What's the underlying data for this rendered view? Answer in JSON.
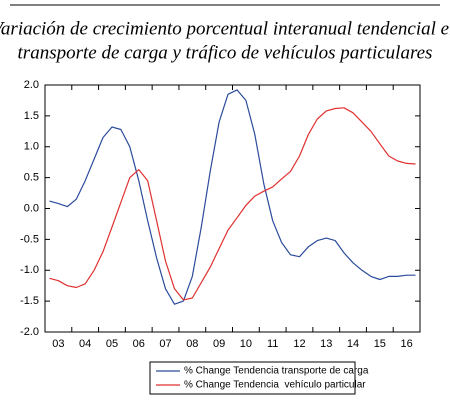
{
  "chart_data": {
    "type": "line",
    "title": [
      "Variación de crecimiento porcentual interanual tendencial en",
      "transporte de carga y tráfico de vehículos particulares"
    ],
    "categories": [
      null,
      "03",
      null,
      null,
      "04",
      null,
      null,
      "05",
      null,
      null,
      "06",
      null,
      null,
      "07",
      null,
      null,
      "08",
      null,
      null,
      "09",
      null,
      null,
      "10",
      null,
      null,
      "11",
      null,
      null,
      "12",
      null,
      null,
      "13",
      null,
      null,
      "14",
      null,
      null,
      "15",
      null,
      null,
      "16",
      null
    ],
    "series": [
      {
        "name": "% Change Tendencia transporte de carga",
        "color": "#2b4b9b",
        "values": [
          0.12,
          0.08,
          0.03,
          0.15,
          0.45,
          0.8,
          1.15,
          1.32,
          1.28,
          1.0,
          0.45,
          -0.2,
          -0.8,
          -1.3,
          -1.55,
          -1.5,
          -1.1,
          -0.3,
          0.6,
          1.4,
          1.85,
          1.92,
          1.75,
          1.2,
          0.4,
          -0.2,
          -0.55,
          -0.75,
          -0.78,
          -0.62,
          -0.52,
          -0.48,
          -0.52,
          -0.72,
          -0.88,
          -1.0,
          -1.1,
          -1.15,
          -1.1,
          -1.1,
          -1.08,
          -1.08
        ]
      },
      {
        "name": "% Change Tendencia  vehículo particular",
        "color": "#e03030",
        "values": [
          -1.13,
          -1.17,
          -1.25,
          -1.28,
          -1.22,
          -1.0,
          -0.7,
          -0.3,
          0.1,
          0.5,
          0.63,
          0.45,
          -0.2,
          -0.85,
          -1.3,
          -1.48,
          -1.45,
          -1.2,
          -0.95,
          -0.65,
          -0.35,
          -0.15,
          0.05,
          0.2,
          0.28,
          0.35,
          0.48,
          0.6,
          0.85,
          1.2,
          1.45,
          1.58,
          1.62,
          1.63,
          1.55,
          1.4,
          1.25,
          1.05,
          0.85,
          0.77,
          0.73,
          0.72
        ]
      }
    ],
    "ylim": [
      -2,
      2
    ],
    "yticks": [
      {
        "value": -2,
        "label": "-2.0"
      },
      -1.5,
      {
        "value": -1,
        "label": "-1.0"
      },
      -0.5,
      {
        "value": 0,
        "label": "0.0"
      },
      0.5,
      {
        "value": 1,
        "label": "1.0"
      },
      1.5,
      {
        "value": 2,
        "label": "2.0"
      }
    ],
    "grid": false
  }
}
